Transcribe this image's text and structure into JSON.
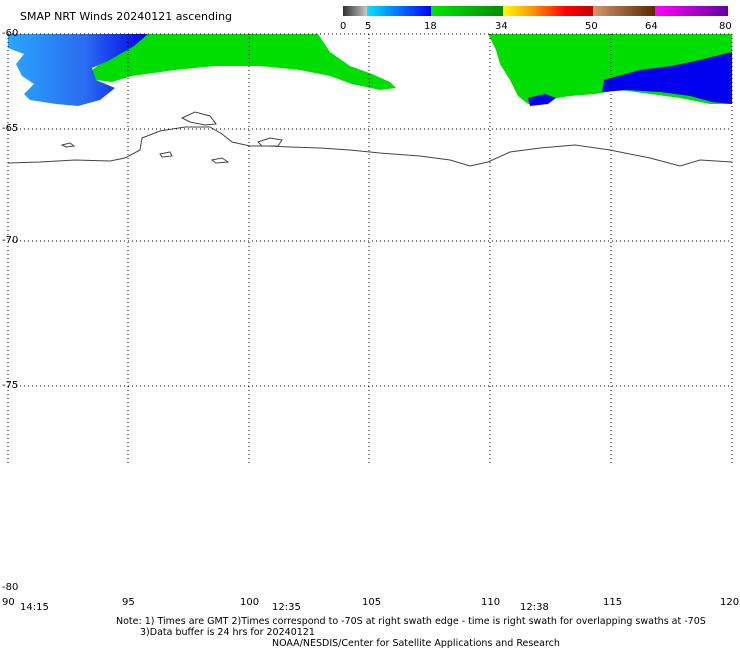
{
  "title": "SMAP NRT Winds 20240121 ascending",
  "colorbar": {
    "labels": [
      "0",
      "5",
      "18",
      "34",
      "50",
      "64",
      "80"
    ],
    "segments": [
      {
        "from": 0,
        "to": 5,
        "colors": [
          "#303030",
          "#c8c8c8"
        ]
      },
      {
        "from": 5,
        "to": 18,
        "colors": [
          "#00e5ff",
          "#0000ff"
        ]
      },
      {
        "from": 18,
        "to": 34,
        "colors": [
          "#00e600",
          "#008c00"
        ]
      },
      {
        "from": 34,
        "to": 50,
        "colors": [
          "#ffff00",
          "#ff8c00",
          "#ff0000",
          "#c80000"
        ]
      },
      {
        "from": 50,
        "to": 64,
        "colors": [
          "#d2966e",
          "#5a2800"
        ]
      },
      {
        "from": 64,
        "to": 80,
        "colors": [
          "#ff00ff",
          "#6400a0"
        ]
      }
    ]
  },
  "axes": {
    "lat_labels": [
      "-60",
      "-65",
      "-70",
      "-75",
      "-80"
    ],
    "lon_labels": [
      "90",
      "95",
      "100",
      "105",
      "110",
      "115",
      "120"
    ],
    "time_labels": [
      "14:15",
      "12:35",
      "12:38"
    ]
  },
  "colors": {
    "wind_blue": "#0000ee",
    "wind_light_blue": "#1a8cff",
    "wind_green": "#00dd00",
    "coastline": "#444444",
    "grid": "#000000"
  },
  "notes": {
    "line1": "Note: 1) Times are GMT 2)Times correspond to -70S at right swath edge - time is right swath for overlapping swaths at -70S",
    "line2": "3)Data buffer is 24 hrs for 20240121",
    "line3": "NOAA/NESDIS/Center for Satellite Applications and Research"
  }
}
